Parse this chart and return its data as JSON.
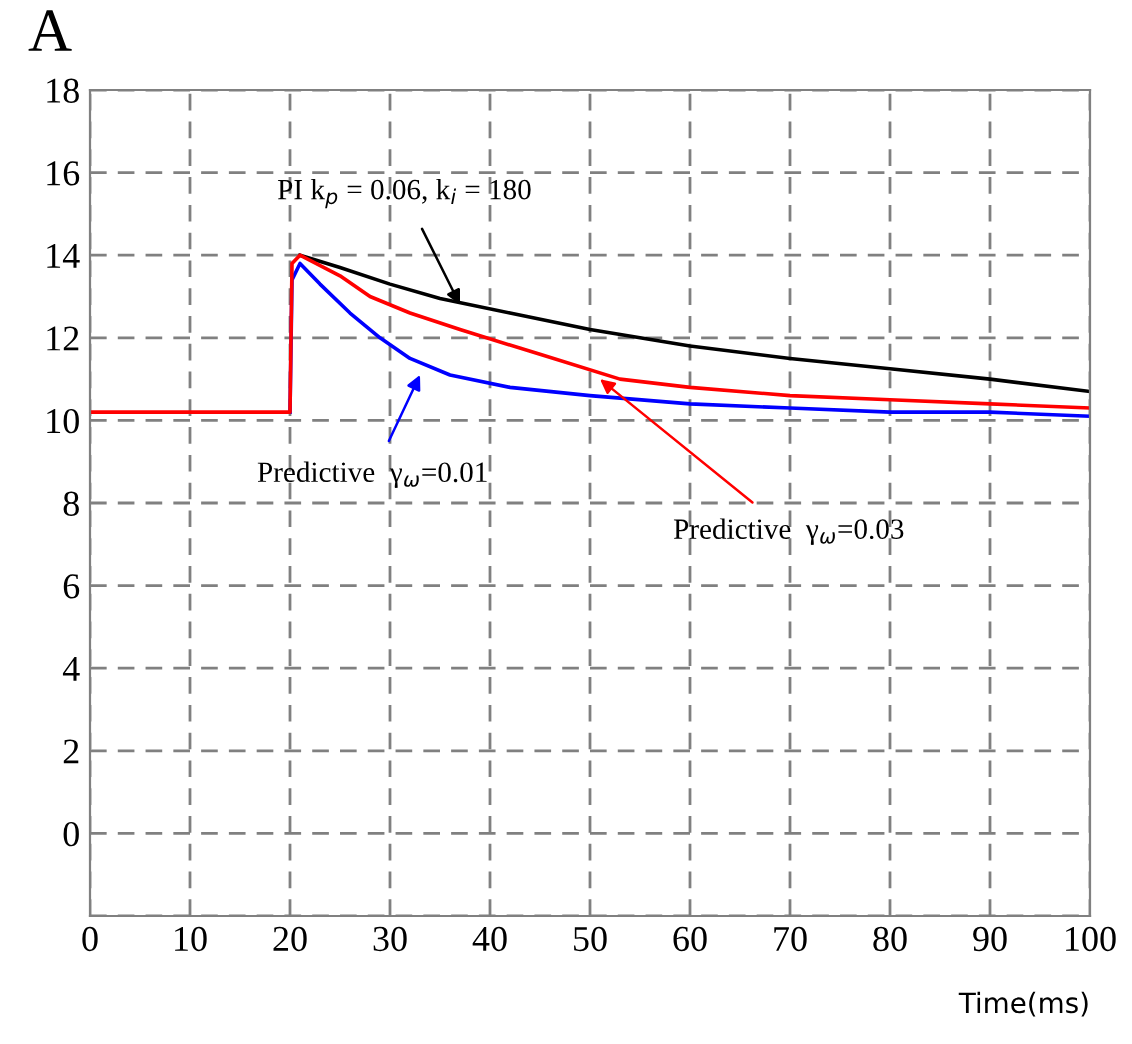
{
  "chart_data": {
    "type": "line",
    "title": "A",
    "xlabel": "Time(ms)",
    "xlim": [
      0,
      100
    ],
    "xticks": [
      0,
      10,
      20,
      30,
      40,
      50,
      60,
      70,
      80,
      90,
      100
    ],
    "ylim": [
      -2,
      18
    ],
    "yticks": [
      {
        "value": -2,
        "label": null
      },
      0,
      2,
      4,
      6,
      8,
      10,
      12,
      14,
      16,
      18
    ],
    "grid": true,
    "line_style": "solid",
    "series": [
      {
        "color": "#000000",
        "x": [
          21,
          25,
          30,
          35,
          42,
          50,
          60,
          70,
          80,
          90,
          100
        ],
        "values": [
          14.0,
          13.7,
          13.3,
          12.95,
          12.6,
          12.2,
          11.8,
          11.5,
          11.25,
          11.0,
          10.7
        ]
      },
      {
        "color": "#0000ff",
        "x": [
          20,
          20.2,
          21,
          23,
          26,
          29,
          32,
          36,
          42,
          50,
          60,
          70,
          80,
          90,
          100
        ],
        "values": [
          10.2,
          13.4,
          13.8,
          13.3,
          12.6,
          12.0,
          11.5,
          11.1,
          10.8,
          10.6,
          10.4,
          10.3,
          10.2,
          10.2,
          10.1
        ]
      },
      {
        "color": "#ff0000",
        "x": [
          0,
          10,
          20,
          20.2,
          21,
          25,
          28,
          32,
          37,
          45,
          53,
          60,
          70,
          80,
          90,
          100
        ],
        "values": [
          10.2,
          10.2,
          10.2,
          13.8,
          14.0,
          13.5,
          13.0,
          12.6,
          12.2,
          11.6,
          11.0,
          10.8,
          10.6,
          10.5,
          10.4,
          10.3
        ]
      }
    ],
    "annotations": [
      {
        "text": "PI k$_{p}$ = 0.06, k$_{i}$ = 180",
        "x": 37,
        "y": 12.8
      },
      {
        "text": "Predictive  γ$_{ω}$=0.01",
        "x": 33,
        "y": 11.1
      },
      {
        "text": "Predictive  γ$_{ω}$=0.03",
        "x": 51,
        "y": 11.0
      }
    ]
  }
}
